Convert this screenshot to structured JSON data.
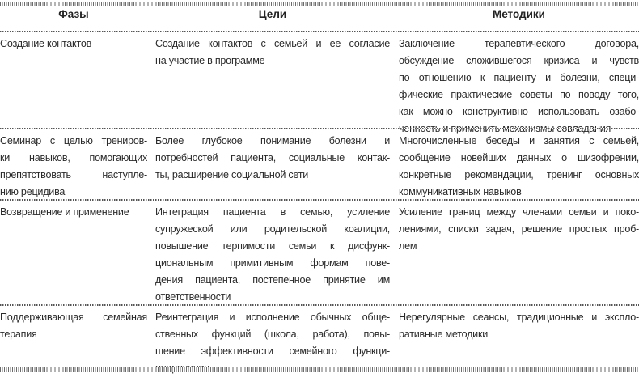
{
  "table": {
    "headers": [
      "Фазы",
      "Цели",
      "Методики"
    ],
    "rows": [
      {
        "phase": [
          "Создание контактов"
        ],
        "goals": [
          "Создание контактов с семьей и ее согласие",
          "на участие в программе"
        ],
        "methods": [
          "Заключение терапевтического договора,",
          "обсуждение сложившегося кризиса и чувств",
          "по отношению к пациенту и болезни, специ-",
          "фические практические советы по поводу того,",
          "как можно конструктивно использовать озабо-",
          "ченность и применить механизмы совладания"
        ]
      },
      {
        "phase": [
          "Семинар с целью трениров-",
          "ки навыков, помогающих",
          "препятствовать наступле-",
          "нию рецидива"
        ],
        "goals": [
          "Более глубокое понимание болезни и",
          "потребностей пациента, социальные контак-",
          "ты, расширение социальной сети"
        ],
        "methods": [
          "Многочисленные беседы и занятия с семьей,",
          "сообщение новейших данных о шизофрении,",
          "конкретные рекомендации, тренинг основных",
          "коммуникативных навыков"
        ]
      },
      {
        "phase": [
          "Возвращение и применение"
        ],
        "goals": [
          "Интеграция пациента в семью, усиление",
          "супружеской или родительской коалиции,",
          "повышение терпимости семьи к дисфунк-",
          "циональным примитивным формам пове-",
          "дения пациента, постепенное принятие им",
          "ответственности"
        ],
        "methods": [
          "Усиление границ между членами семьи и поко-",
          "лениями, списки задач, решение простых проб-",
          "лем"
        ]
      },
      {
        "phase": [
          "Поддерживающая семейная",
          "терапия"
        ],
        "goals": [
          "Реинтеграция и исполнение обычных обще-",
          "ственных функций (школа, работа), повы-",
          "шение эффективности семейного функци-",
          "онирования"
        ],
        "methods": [
          "Нерегулярные сеансы, традиционные и экспло-",
          "ративные методики"
        ]
      }
    ]
  }
}
